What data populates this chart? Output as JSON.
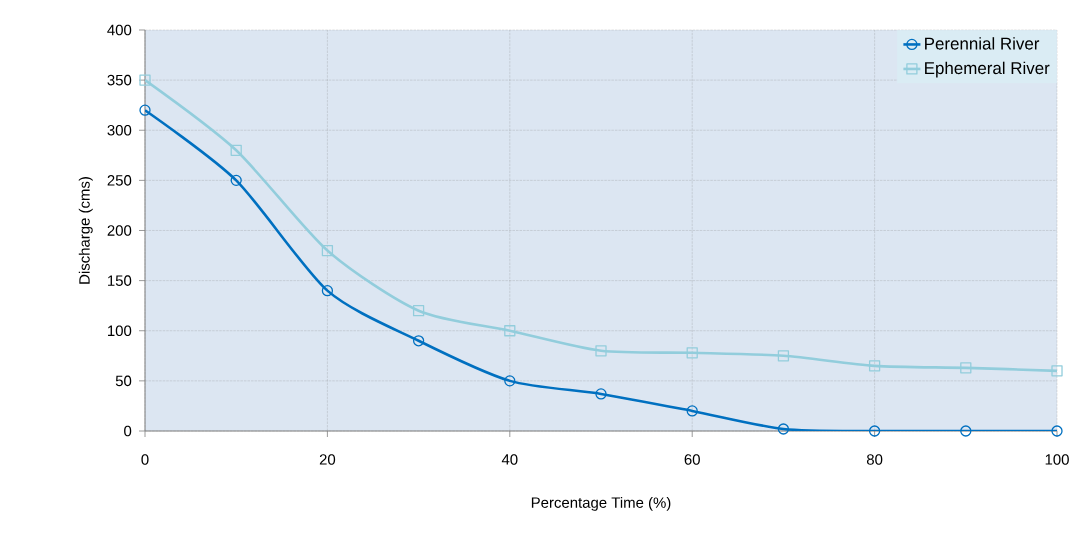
{
  "chart_data": {
    "type": "line",
    "xlabel": "Percentage Time (%)",
    "ylabel": "Discharge (cms)",
    "x": [
      0,
      10,
      20,
      30,
      40,
      50,
      60,
      70,
      80,
      90,
      100
    ],
    "series": [
      {
        "name": "Perennial River",
        "color": "#0070c0",
        "marker": "circle",
        "values": [
          320,
          250,
          140,
          90,
          50,
          37,
          20,
          2,
          0,
          0,
          0
        ]
      },
      {
        "name": "Ephemeral River",
        "color": "#92cddc",
        "marker": "square",
        "values": [
          350,
          280,
          180,
          120,
          100,
          80,
          78,
          75,
          65,
          63,
          60
        ]
      }
    ],
    "xlim": [
      0,
      100
    ],
    "ylim": [
      0,
      400
    ],
    "xticks": [
      0,
      20,
      40,
      60,
      80,
      100
    ],
    "yticks": [
      0,
      50,
      100,
      150,
      200,
      250,
      300,
      350,
      400
    ],
    "grid": true,
    "legend": "top right",
    "line_style": "solid"
  }
}
